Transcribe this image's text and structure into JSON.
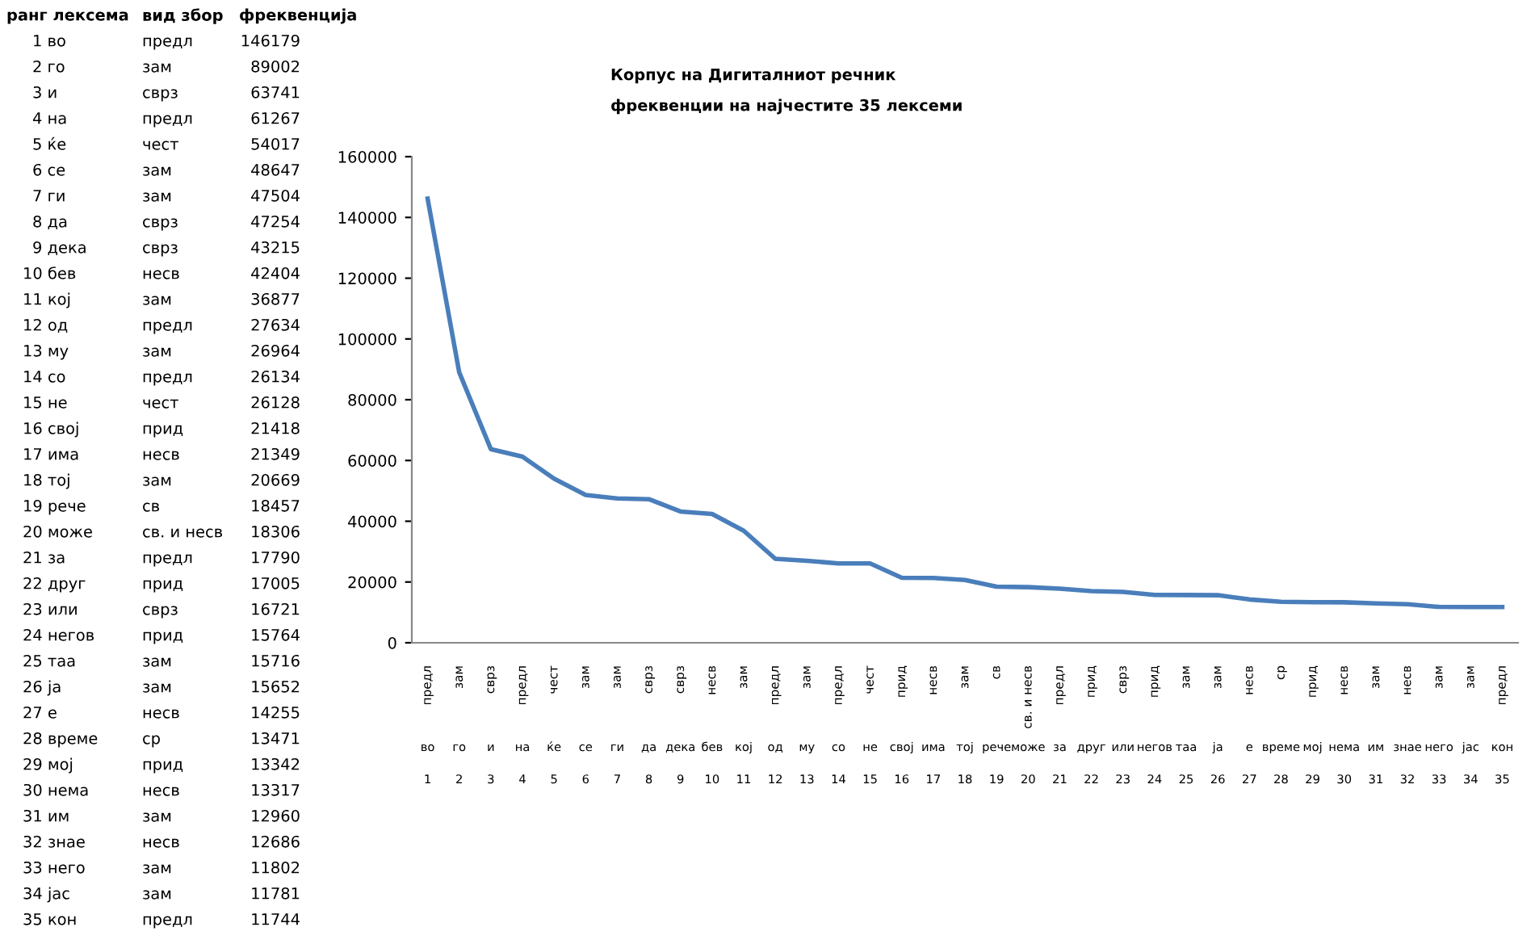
{
  "chart_data": [
    {
      "type": "other",
      "annotations": [
        "ранг лексема\tвид збор\tфреквенција",
        "1 во\tпредл\t146179",
        "2 го\tзам\t89002",
        "3 и\tсврз\t63741",
        "4 на\tпредл\t61267",
        "5 ќе\tчест\t54017",
        "6 се\tзам\t48647",
        "7 ги\tзам\t47504",
        "8 да\tсврз\t47254",
        "9 дека\tсврз\t43215",
        "10 бев\tнесв\t42404",
        "11 кој\tзам\t36877",
        "12 од\tпредл\t27634",
        "13 му\tзам\t26964",
        "14 со\tпредл\t26134",
        "15 не\tчест\t26128",
        "16 свој\tприд\t21418",
        "17 има\tнесв\t21349",
        "18 тој\tзам\t20669",
        "19 рече\tсв\t18457",
        "20 може\tсв. и несв\t18306",
        "21 за\tпредл\t17790",
        "22 друг\tприд\t17005",
        "23 или\tсврз\t16721",
        "24 негов\tприд\t15764",
        "25 таа\tзам\t15716",
        "26 ја\tзам\t15652",
        "27 е\tнесв\t14255",
        "28 време\tср\t13471",
        "29 мој\tприд\t13342",
        "30 нема\tнесв\t13317",
        "31 им\tзам\t12960",
        "32 знае\tнесв\t12686",
        "33 него\tзам\t11802",
        "34 јас\tзам\t11781",
        "35 кон\tпредл\t11744"
      ]
    },
    {
      "type": "line",
      "title": "Корпус на Дигиталниот речник",
      "subtitle": "фреквенции на најчестите 35 лексеми",
      "categories": [
        "предл\nво\n1",
        "зам\nго\n2",
        "сврз\nи\n3",
        "предл\nна\n4",
        "чест\nќе\n5",
        "зам\nсе\n6",
        "зам\nги\n7",
        "сврз\nда\n8",
        "сврз\nдека\n9",
        "несв\nбев\n10",
        "зам\nкој\n11",
        "предл\nод\n12",
        "зам\nму\n13",
        "предл\nсо\n14",
        "чест\nне\n15",
        "прид\nсвој\n16",
        "несв\nима\n17",
        "зам\nтој\n18",
        "св\nрече\n19",
        "св. и несв\nможе\n20",
        "предл\nза\n21",
        "прид\nдруг\n22",
        "сврз\nили\n23",
        "прид\nнегов\n24",
        "зам\nтаа\n25",
        "зам\nја\n26",
        "несв\nе\n27",
        "ср\nвреме\n28",
        "прид\nмој\n29",
        "несв\nнема\n30",
        "зам\nим\n31",
        "несв\nзнае\n32",
        "зам\nнего\n33",
        "зам\nјас\n34",
        "предл\nкон\n35"
      ],
      "series": [
        {
          "color": "#4a7ebb",
          "values": [
            146179,
            89002,
            63741,
            61267,
            54017,
            48647,
            47504,
            47254,
            43215,
            42404,
            36877,
            27634,
            26964,
            26134,
            26128,
            21418,
            21349,
            20669,
            18457,
            18306,
            17790,
            17005,
            16721,
            15764,
            15716,
            15652,
            14255,
            13471,
            13342,
            13317,
            12960,
            12686,
            11802,
            11781,
            11744
          ]
        }
      ],
      "ylim": [
        0,
        160000
      ],
      "yticks": [
        0,
        20000,
        40000,
        60000,
        80000,
        100000,
        120000,
        140000,
        160000
      ],
      "grid": false,
      "marker": "none",
      "line_style": "solid"
    }
  ]
}
